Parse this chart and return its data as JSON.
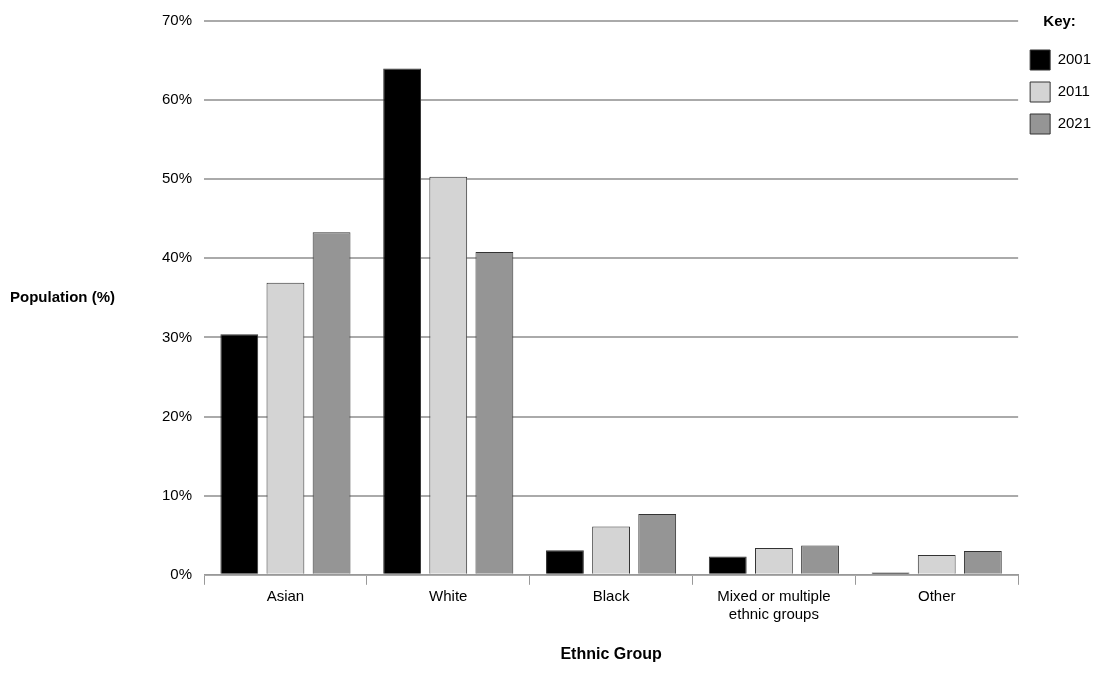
{
  "chart_data": {
    "type": "bar",
    "xlabel": "Ethnic Group",
    "ylabel": "Population (%)",
    "legend_title": "Key:",
    "categories": [
      "Asian",
      "White",
      "Black",
      "Mixed or multiple ethnic groups",
      "Other"
    ],
    "series": [
      {
        "name": "2001",
        "color": "#000000",
        "values": [
          30.4,
          64.0,
          3.1,
          2.3,
          0.3
        ]
      },
      {
        "name": "2011",
        "color": "#d4d4d4",
        "values": [
          36.9,
          50.3,
          6.1,
          3.4,
          2.5
        ]
      },
      {
        "name": "2021",
        "color": "#959595",
        "values": [
          43.3,
          40.8,
          7.7,
          3.7,
          3.0
        ]
      }
    ],
    "ylim": [
      0,
      70
    ],
    "yticks": [
      {
        "value": 0,
        "label": "0%"
      },
      {
        "value": 10,
        "label": "10%"
      },
      {
        "value": 20,
        "label": "20%"
      },
      {
        "value": 30,
        "label": "30%"
      },
      {
        "value": 40,
        "label": "40%"
      },
      {
        "value": 50,
        "label": "50%"
      },
      {
        "value": 60,
        "label": "60%"
      },
      {
        "value": 70,
        "label": "70%"
      }
    ],
    "grid": "y",
    "legend": "top right"
  }
}
